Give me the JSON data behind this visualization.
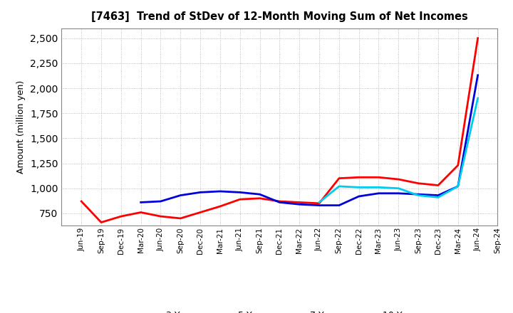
{
  "title": "[7463]  Trend of StDev of 12-Month Moving Sum of Net Incomes",
  "ylabel": "Amount (million yen)",
  "background_color": "#ffffff",
  "grid_color": "#aaaaaa",
  "ylim": [
    630,
    2600
  ],
  "yticks": [
    750,
    1000,
    1250,
    1500,
    1750,
    2000,
    2250,
    2500
  ],
  "x_labels": [
    "Jun-19",
    "Sep-19",
    "Dec-19",
    "Mar-20",
    "Jun-20",
    "Sep-20",
    "Dec-20",
    "Mar-21",
    "Jun-21",
    "Sep-21",
    "Dec-21",
    "Mar-22",
    "Jun-22",
    "Sep-22",
    "Dec-22",
    "Mar-23",
    "Jun-23",
    "Sep-23",
    "Dec-23",
    "Mar-24",
    "Jun-24",
    "Sep-24"
  ],
  "series": {
    "3 Years": {
      "color": "#ff0000",
      "values": [
        870,
        660,
        720,
        760,
        720,
        700,
        760,
        820,
        890,
        900,
        870,
        860,
        850,
        1100,
        1110,
        1110,
        1090,
        1050,
        1030,
        1230,
        2500,
        null
      ]
    },
    "5 Years": {
      "color": "#0000dd",
      "values": [
        null,
        null,
        null,
        860,
        870,
        930,
        960,
        970,
        960,
        940,
        860,
        840,
        830,
        830,
        920,
        950,
        950,
        940,
        930,
        1020,
        2130,
        null
      ]
    },
    "7 Years": {
      "color": "#00ccee",
      "values": [
        null,
        null,
        null,
        null,
        null,
        null,
        null,
        null,
        null,
        null,
        null,
        null,
        860,
        1020,
        1010,
        1010,
        1000,
        930,
        910,
        1020,
        1900,
        null
      ]
    },
    "10 Years": {
      "color": "#007700",
      "values": [
        null,
        null,
        null,
        null,
        null,
        null,
        null,
        null,
        null,
        null,
        null,
        null,
        null,
        null,
        null,
        null,
        null,
        null,
        null,
        null,
        null,
        null
      ]
    }
  }
}
